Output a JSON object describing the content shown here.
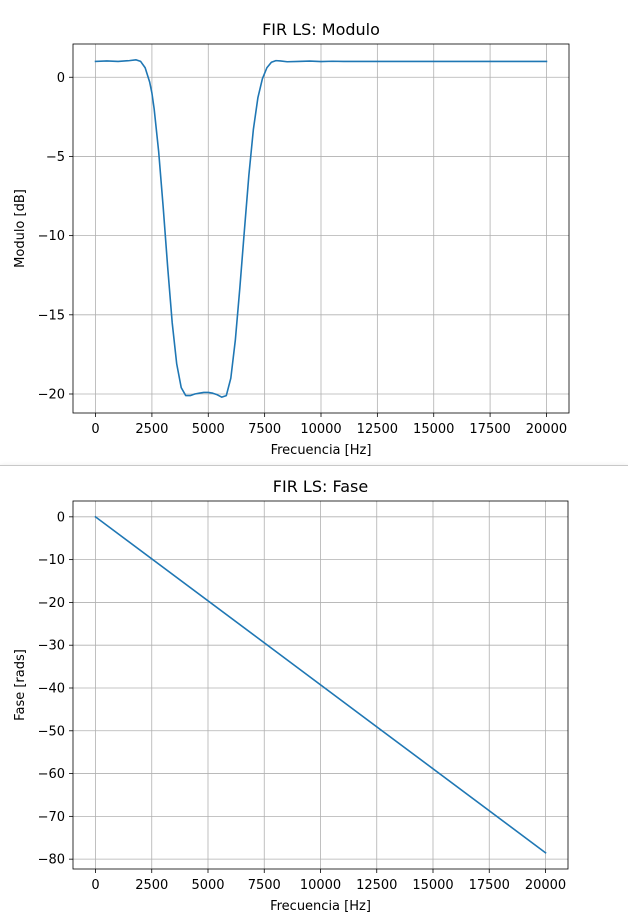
{
  "chart_data": [
    {
      "type": "line",
      "title": "FIR LS: Modulo",
      "xlabel": "Frecuencia [Hz]",
      "ylabel": "Modulo [dB]",
      "xlim": [
        -1000,
        21000
      ],
      "ylim": [
        -21.2,
        2.1
      ],
      "xticks": [
        0,
        2500,
        5000,
        7500,
        10000,
        12500,
        15000,
        17500,
        20000
      ],
      "yticks": [
        0,
        -5,
        -10,
        -15,
        -20
      ],
      "ytick_labels": [
        "0",
        "−5",
        "−10",
        "−15",
        "−20"
      ],
      "grid": true,
      "color": "#1f77b4",
      "series": [
        {
          "name": "Modulo",
          "x": [
            0,
            500,
            1000,
            1500,
            1800,
            2000,
            2200,
            2400,
            2500,
            2600,
            2800,
            3000,
            3200,
            3400,
            3600,
            3800,
            4000,
            4200,
            4400,
            4600,
            4800,
            5000,
            5200,
            5400,
            5600,
            5800,
            6000,
            6200,
            6400,
            6600,
            6800,
            7000,
            7200,
            7400,
            7600,
            7800,
            8000,
            8200,
            8500,
            9000,
            9500,
            10000,
            10500,
            11000,
            12000,
            13000,
            14000,
            15000,
            16000,
            17000,
            18000,
            19000,
            20000
          ],
          "y": [
            1.0,
            1.03,
            1.0,
            1.05,
            1.1,
            1.0,
            0.6,
            -0.3,
            -1.0,
            -2.0,
            -4.7,
            -8.2,
            -12.0,
            -15.5,
            -18.1,
            -19.6,
            -20.1,
            -20.1,
            -20.0,
            -19.95,
            -19.9,
            -19.9,
            -19.95,
            -20.05,
            -20.2,
            -20.1,
            -19.0,
            -16.6,
            -13.3,
            -9.7,
            -6.2,
            -3.3,
            -1.3,
            -0.1,
            0.6,
            0.95,
            1.05,
            1.03,
            0.98,
            1.0,
            1.02,
            0.99,
            1.01,
            1.0,
            1.0,
            1.0,
            1.0,
            1.0,
            1.0,
            1.0,
            1.0,
            1.0,
            1.0
          ]
        }
      ]
    },
    {
      "type": "line",
      "title": "FIR LS: Fase",
      "xlabel": "Frecuencia [Hz]",
      "ylabel": "Fase [rads]",
      "xlim": [
        -1000,
        21000
      ],
      "ylim": [
        -82.3,
        3.7
      ],
      "xticks": [
        0,
        2500,
        5000,
        7500,
        10000,
        12500,
        15000,
        17500,
        20000
      ],
      "yticks": [
        0,
        -10,
        -20,
        -30,
        -40,
        -50,
        -60,
        -70,
        -80
      ],
      "ytick_labels": [
        "0",
        "−10",
        "−20",
        "−30",
        "−40",
        "−50",
        "−60",
        "−70",
        "−80"
      ],
      "grid": true,
      "color": "#1f77b4",
      "series": [
        {
          "name": "Fase",
          "x": [
            0,
            20000
          ],
          "y": [
            0,
            -78.5
          ]
        }
      ]
    }
  ]
}
